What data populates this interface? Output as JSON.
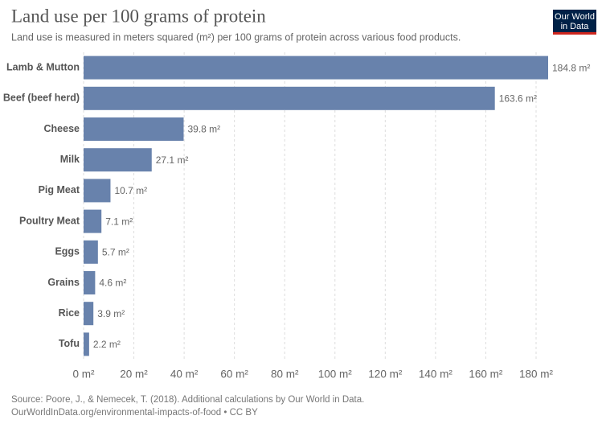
{
  "chart_data": {
    "type": "bar",
    "orientation": "horizontal",
    "title": "Land use per 100 grams of protein",
    "subtitle": "Land use is measured in meters squared (m²) per 100 grams of protein across various food products.",
    "categories": [
      "Lamb & Mutton",
      "Beef (beef herd)",
      "Cheese",
      "Milk",
      "Pig Meat",
      "Poultry Meat",
      "Eggs",
      "Grains",
      "Rice",
      "Tofu"
    ],
    "values": [
      184.8,
      163.6,
      39.8,
      27.1,
      10.7,
      7.1,
      5.7,
      4.6,
      3.9,
      2.2
    ],
    "value_labels": [
      "184.8 m²",
      "163.6 m²",
      "39.8 m²",
      "27.1 m²",
      "10.7 m²",
      "7.1 m²",
      "5.7 m²",
      "4.6 m²",
      "3.9 m²",
      "2.2 m²"
    ],
    "color": "#6882ac",
    "xlim": [
      0,
      184.8
    ],
    "xticks": [
      {
        "value": 0,
        "label": "0 m²"
      },
      {
        "value": 20,
        "label": "20 m²"
      },
      {
        "value": 40,
        "label": "40 m²"
      },
      {
        "value": 60,
        "label": "60 m²"
      },
      {
        "value": 80,
        "label": "80 m²"
      },
      {
        "value": 100,
        "label": "100 m²"
      },
      {
        "value": 120,
        "label": "120 m²"
      },
      {
        "value": 140,
        "label": "140 m²"
      },
      {
        "value": 160,
        "label": "160 m²"
      },
      {
        "value": 180,
        "label": "180 m²"
      }
    ],
    "grid": true,
    "source": "Source: Poore, J., & Nemecek, T. (2018). Additional calculations by Our World in Data.",
    "source_link": "OurWorldInData.org/environmental-impacts-of-food • CC BY",
    "logo": [
      "Our World",
      "in Data"
    ]
  }
}
